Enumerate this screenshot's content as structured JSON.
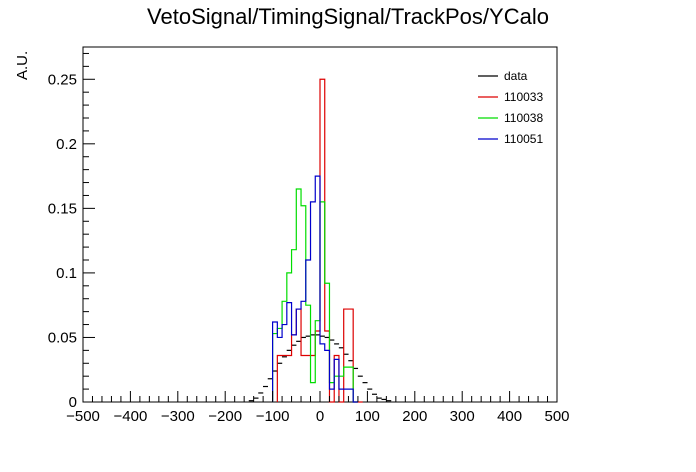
{
  "chart_data": {
    "type": "line",
    "title": "VetoSignal/TimingSignal/TrackPos/YCalo",
    "xlabel": "",
    "ylabel": "A.U.",
    "xlim": [
      -500,
      500
    ],
    "ylim": [
      0,
      0.275
    ],
    "bin_width": 10,
    "x_ticks": [
      -500,
      -400,
      -300,
      -200,
      -100,
      0,
      100,
      200,
      300,
      400,
      500
    ],
    "x_tick_labels": [
      "−500",
      "−400",
      "−300",
      "−200",
      "−100",
      "0",
      "100",
      "200",
      "300",
      "400",
      "500"
    ],
    "y_ticks": [
      0,
      0.05,
      0.1,
      0.15,
      0.2,
      0.25
    ],
    "y_tick_labels": [
      "0",
      "0.05",
      "0.1",
      "0.15",
      "0.2",
      "0.25"
    ],
    "grid": false,
    "legend_position": "top-right",
    "series": [
      {
        "name": "data",
        "color": "#000000",
        "style": "markers",
        "x": [
          -145,
          -135,
          -125,
          -115,
          -105,
          -95,
          -85,
          -75,
          -65,
          -55,
          -45,
          -35,
          -25,
          -15,
          -5,
          5,
          15,
          25,
          35,
          45,
          55,
          65,
          75,
          85,
          95,
          105,
          115,
          125,
          135,
          145
        ],
        "values": [
          0.001,
          0.003,
          0.007,
          0.012,
          0.018,
          0.024,
          0.03,
          0.035,
          0.04,
          0.044,
          0.047,
          0.05,
          0.051,
          0.052,
          0.052,
          0.051,
          0.05,
          0.048,
          0.045,
          0.042,
          0.037,
          0.032,
          0.026,
          0.02,
          0.015,
          0.01,
          0.006,
          0.003,
          0.002,
          0.001
        ]
      },
      {
        "name": "110033",
        "color": "#dd0000",
        "style": "step",
        "bins_start": [
          -90,
          -80,
          -70,
          -60,
          -50,
          -40,
          -30,
          -20,
          -10,
          0,
          10,
          20,
          30,
          40,
          50,
          60,
          70,
          80
        ],
        "values": [
          0.036,
          0.036,
          0.036,
          0.052,
          0.072,
          0.036,
          0.036,
          0.036,
          0.055,
          0.25,
          0.055,
          0.0,
          0.036,
          0.0,
          0.072,
          0.072,
          0.0,
          0.0
        ]
      },
      {
        "name": "110038",
        "color": "#00dd00",
        "style": "step",
        "bins_start": [
          -100,
          -90,
          -80,
          -70,
          -60,
          -50,
          -40,
          -30,
          -20,
          -10,
          0,
          10,
          20,
          30,
          40,
          50,
          60,
          70
        ],
        "values": [
          0.053,
          0.057,
          0.078,
          0.1,
          0.118,
          0.165,
          0.152,
          0.075,
          0.015,
          0.063,
          0.155,
          0.092,
          0.015,
          0.02,
          0.02,
          0.027,
          0.027,
          0.0
        ]
      },
      {
        "name": "110051",
        "color": "#0000cc",
        "style": "step",
        "bins_start": [
          -100,
          -90,
          -80,
          -70,
          -60,
          -50,
          -40,
          -30,
          -20,
          -10,
          0,
          10,
          20,
          30,
          40,
          50,
          60,
          70
        ],
        "values": [
          0.062,
          0.05,
          0.06,
          0.077,
          0.052,
          0.072,
          0.078,
          0.11,
          0.155,
          0.175,
          0.045,
          0.04,
          0.01,
          0.033,
          0.01,
          0.01,
          0.01,
          0.0
        ]
      }
    ]
  }
}
